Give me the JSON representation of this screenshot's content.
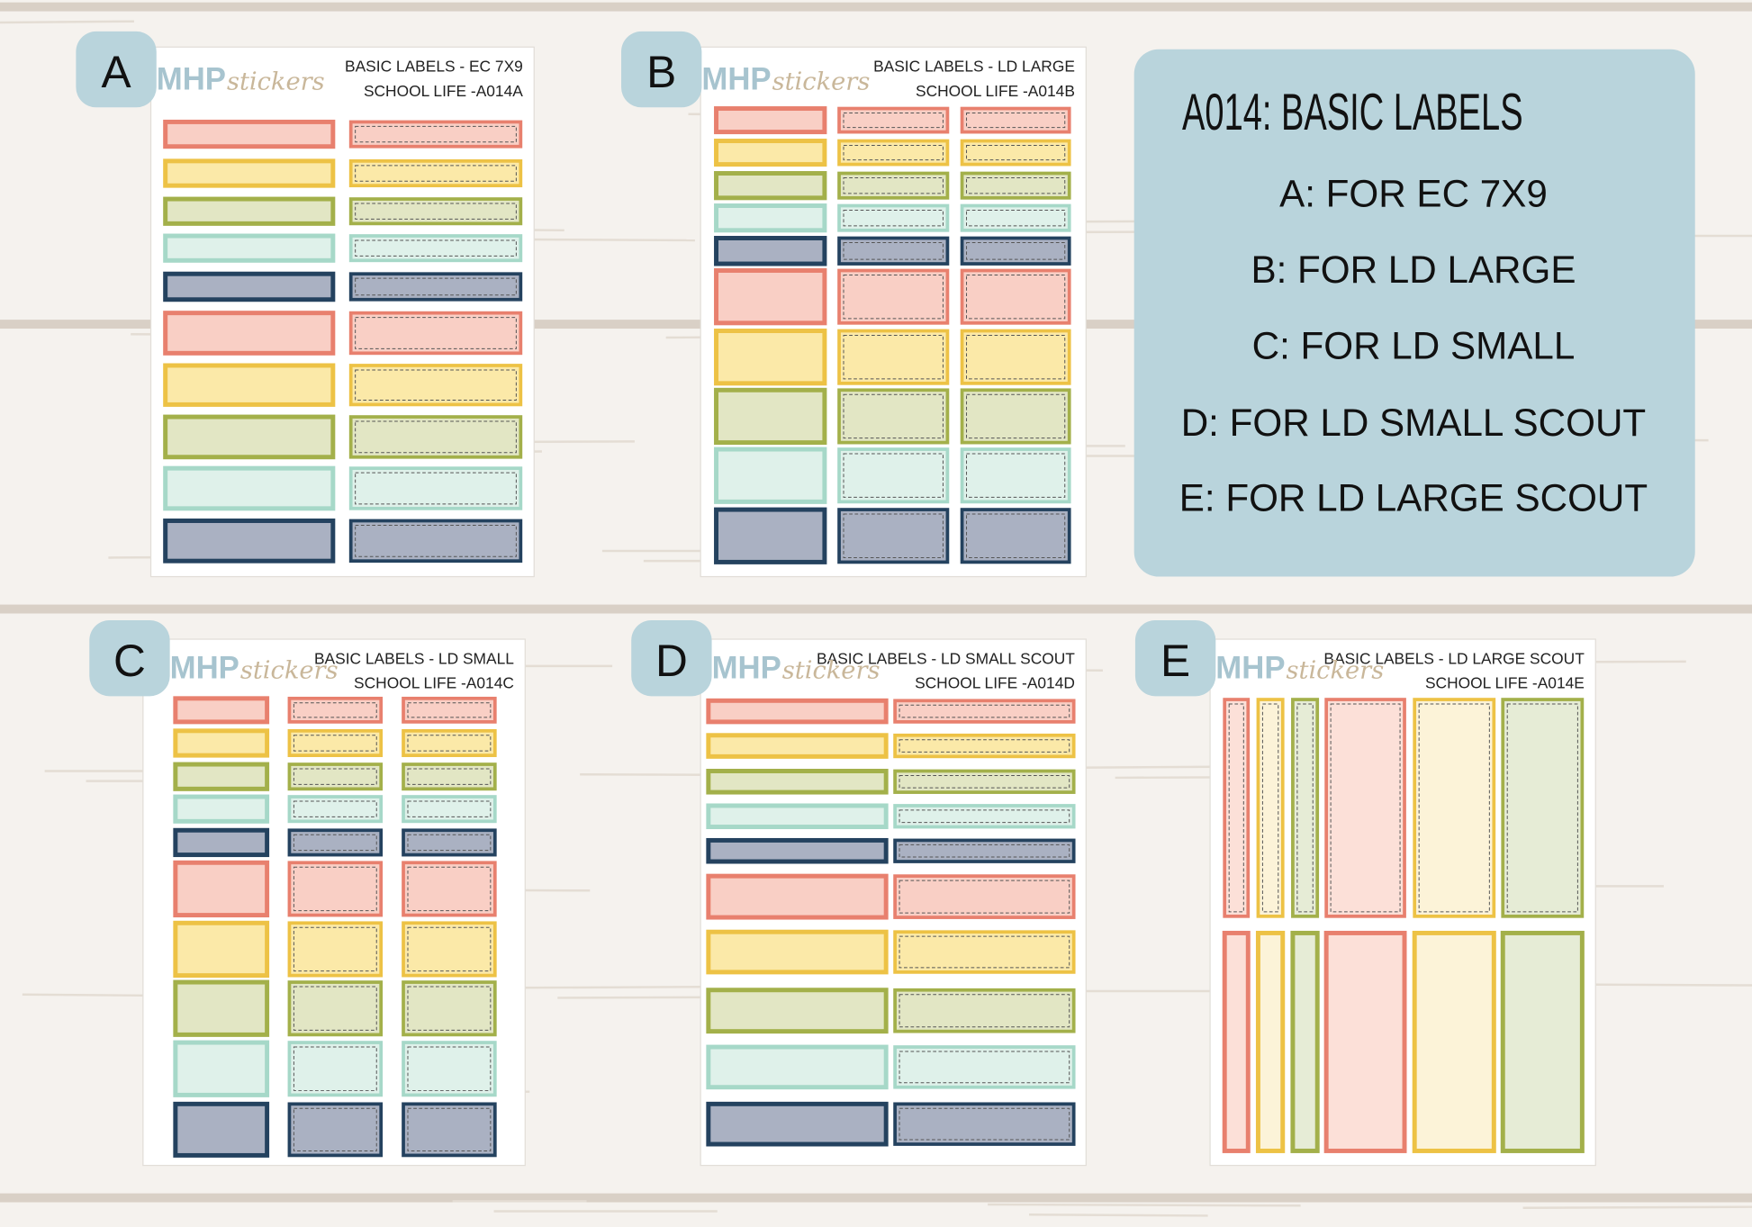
{
  "info": {
    "title": "A014: BASIC LABELS",
    "items": [
      "A: FOR EC 7X9",
      "B: FOR LD LARGE",
      "C: FOR LD SMALL",
      "D: FOR LD SMALL SCOUT",
      "E: FOR LD LARGE SCOUT"
    ]
  },
  "sheets": [
    {
      "letter": "A",
      "brand": "MHP",
      "brand_script": "stickers",
      "line1": "BASIC LABELS - EC 7X9",
      "line2": "SCHOOL LIFE -A014A"
    },
    {
      "letter": "B",
      "brand": "MHP",
      "brand_script": "stickers",
      "line1": "BASIC LABELS - LD LARGE",
      "line2": "SCHOOL LIFE -A014B"
    },
    {
      "letter": "C",
      "brand": "MHP",
      "brand_script": "stickers",
      "line1": "BASIC LABELS - LD SMALL",
      "line2": "SCHOOL LIFE -A014C"
    },
    {
      "letter": "D",
      "brand": "MHP",
      "brand_script": "stickers",
      "line1": "BASIC LABELS - LD SMALL SCOUT",
      "line2": "SCHOOL LIFE -A014D"
    },
    {
      "letter": "E",
      "brand": "MHP",
      "brand_script": "stickers",
      "line1": "BASIC LABELS - LD LARGE SCOUT",
      "line2": "SCHOOL LIFE -A014E"
    }
  ]
}
